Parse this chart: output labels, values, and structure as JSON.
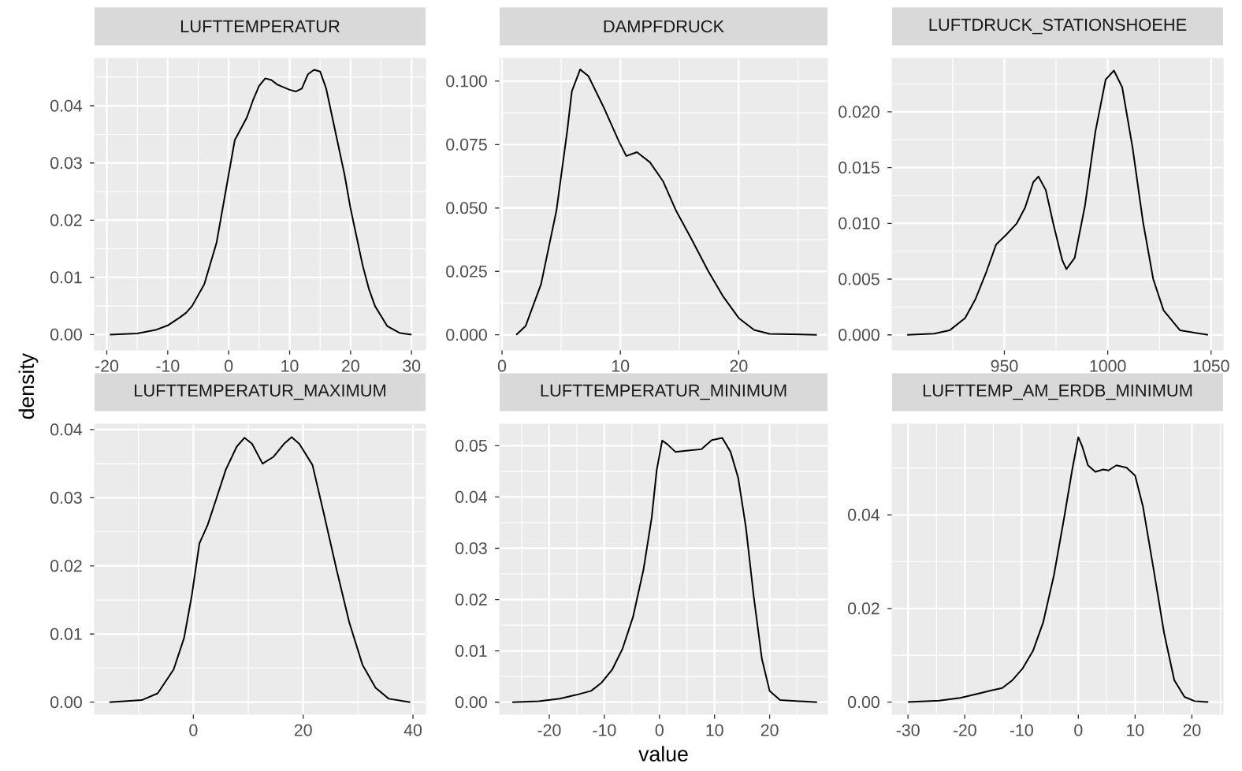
{
  "chart_data": [
    {
      "type": "line",
      "title": "LUFTTEMPERATUR",
      "color": "#000000",
      "grid": true,
      "xlim": [
        -22,
        32.3
      ],
      "ylim": [
        -0.0027,
        0.0483
      ],
      "xticks": [
        -20,
        -10,
        0,
        10,
        20,
        30
      ],
      "yticks": [
        {
          "value": 0,
          "label": "0.00"
        },
        {
          "value": 0.01,
          "label": "0.01"
        },
        {
          "value": 0.02,
          "label": "0.02"
        },
        {
          "value": 0.03,
          "label": "0.03"
        },
        {
          "value": 0.04,
          "label": "0.04"
        }
      ],
      "x": [
        -19.5,
        -15,
        -12,
        -10,
        -8,
        -7,
        -6,
        -4,
        -2,
        -1,
        0,
        1,
        2,
        3,
        4,
        5,
        6,
        7,
        8,
        10,
        11,
        12,
        13,
        14,
        15,
        16,
        17,
        18,
        19,
        20,
        21,
        22,
        23,
        24,
        26,
        28,
        30
      ],
      "values": [
        0,
        0.0002,
        0.0008,
        0.0016,
        0.003,
        0.0038,
        0.005,
        0.0088,
        0.016,
        0.022,
        0.028,
        0.034,
        0.036,
        0.038,
        0.041,
        0.0435,
        0.0448,
        0.0445,
        0.0437,
        0.0428,
        0.0425,
        0.043,
        0.0455,
        0.0463,
        0.046,
        0.043,
        0.038,
        0.033,
        0.028,
        0.022,
        0.017,
        0.012,
        0.008,
        0.005,
        0.0015,
        0.0003,
        0
      ]
    },
    {
      "type": "line",
      "title": "DAMPFDRUCK",
      "color": "#000000",
      "grid": true,
      "xlim": [
        -0.2,
        27.5
      ],
      "ylim": [
        -0.006,
        0.109
      ],
      "xticks": [
        0,
        10,
        20
      ],
      "yticks": [
        {
          "value": 0,
          "label": "0.000"
        },
        {
          "value": 0.025,
          "label": "0.025"
        },
        {
          "value": 0.05,
          "label": "0.050"
        },
        {
          "value": 0.075,
          "label": "0.075"
        },
        {
          "value": 0.1,
          "label": "0.100"
        }
      ],
      "x": [
        1.2,
        2.0,
        3.3,
        4.6,
        5.5,
        5.9,
        6.6,
        7.3,
        8.6,
        9.9,
        10.5,
        11.4,
        12.5,
        13.6,
        14.7,
        16.0,
        17.4,
        18.7,
        20,
        21.3,
        22.6,
        26.6
      ],
      "values": [
        0,
        0.0035,
        0.02,
        0.049,
        0.08,
        0.096,
        0.1046,
        0.102,
        0.0896,
        0.076,
        0.0705,
        0.072,
        0.068,
        0.0606,
        0.049,
        0.0378,
        0.0253,
        0.015,
        0.0066,
        0.0019,
        0.0004,
        0
      ]
    },
    {
      "type": "line",
      "title": "LUFTDRUCK_STATIONSHOEHE",
      "color": "#000000",
      "grid": true,
      "xlim": [
        895.7,
        1055.8
      ],
      "ylim": [
        -0.00136,
        0.0248
      ],
      "xticks": [
        950,
        1000,
        1050
      ],
      "yticks": [
        {
          "value": 0,
          "label": "0.000"
        },
        {
          "value": 0.005,
          "label": "0.005"
        },
        {
          "value": 0.01,
          "label": "0.010"
        },
        {
          "value": 0.015,
          "label": "0.015"
        },
        {
          "value": 0.02,
          "label": "0.020"
        }
      ],
      "x": [
        903,
        916,
        923.5,
        931,
        936,
        941,
        946,
        951,
        956,
        960,
        964,
        966.5,
        970,
        974,
        978,
        980,
        984,
        989,
        994,
        999,
        1003,
        1007,
        1012,
        1017,
        1022,
        1027,
        1035,
        1048.5
      ],
      "values": [
        0,
        0.0001,
        0.0004,
        0.0015,
        0.0032,
        0.0055,
        0.0081,
        0.009,
        0.01,
        0.0114,
        0.0137,
        0.0142,
        0.013,
        0.0097,
        0.0067,
        0.0059,
        0.0069,
        0.0116,
        0.0182,
        0.0229,
        0.0237,
        0.0222,
        0.0168,
        0.0102,
        0.005,
        0.0022,
        0.0004,
        0
      ]
    },
    {
      "type": "line",
      "title": "LUFTTEMPERATUR_MAXIMUM",
      "ylabel": "density",
      "color": "#000000",
      "grid": true,
      "xlim": [
        -18,
        42.3
      ],
      "ylim": [
        -0.00177,
        0.0408
      ],
      "xticks": [
        0,
        20,
        40
      ],
      "yticks": [
        {
          "value": 0,
          "label": "0.00"
        },
        {
          "value": 0.01,
          "label": "0.01"
        },
        {
          "value": 0.02,
          "label": "0.02"
        },
        {
          "value": 0.03,
          "label": "0.03"
        },
        {
          "value": 0.04,
          "label": "0.04"
        }
      ],
      "x": [
        -15.3,
        -9.4,
        -6.5,
        -3.6,
        -1.7,
        -0.3,
        1.1,
        2.6,
        4.0,
        5.9,
        7.9,
        9.3,
        10.7,
        12.6,
        14.6,
        16.5,
        17.9,
        19.3,
        21.7,
        23.7,
        26.1,
        28.4,
        30.8,
        33.2,
        35.6,
        39.5
      ],
      "values": [
        0,
        0.0003,
        0.0013,
        0.0048,
        0.0094,
        0.0156,
        0.0233,
        0.026,
        0.0294,
        0.0341,
        0.0375,
        0.0388,
        0.0379,
        0.035,
        0.036,
        0.0379,
        0.0389,
        0.0379,
        0.0348,
        0.0279,
        0.0194,
        0.0117,
        0.0055,
        0.0021,
        0.0005,
        0
      ]
    },
    {
      "type": "line",
      "title": "LUFTTEMPERATUR_MINIMUM",
      "xlabel": "value",
      "color": "#000000",
      "grid": true,
      "xlim": [
        -29,
        30.5
      ],
      "ylim": [
        -0.00235,
        0.0542
      ],
      "xticks": [
        -20,
        -10,
        0,
        10,
        20
      ],
      "yticks": [
        {
          "value": 0,
          "label": "0.00"
        },
        {
          "value": 0.01,
          "label": "0.01"
        },
        {
          "value": 0.02,
          "label": "0.02"
        },
        {
          "value": 0.03,
          "label": "0.03"
        },
        {
          "value": 0.04,
          "label": "0.04"
        },
        {
          "value": 0.05,
          "label": "0.05"
        }
      ],
      "x": [
        -26.7,
        -21.9,
        -18.1,
        -15.2,
        -12.4,
        -10.5,
        -8.6,
        -6.7,
        -4.8,
        -2.9,
        -1.4,
        -0.5,
        0.5,
        1.4,
        2.9,
        4.8,
        7.6,
        9.5,
        11.4,
        12.9,
        14.3,
        15.7,
        17.1,
        18.6,
        20,
        21.9,
        28.6
      ],
      "values": [
        0,
        0.0002,
        0.0007,
        0.0014,
        0.0022,
        0.0038,
        0.0063,
        0.0104,
        0.0166,
        0.0258,
        0.036,
        0.0452,
        0.051,
        0.0503,
        0.0488,
        0.049,
        0.0493,
        0.0511,
        0.0515,
        0.0488,
        0.0437,
        0.034,
        0.0207,
        0.0084,
        0.0022,
        0.0004,
        0
      ]
    },
    {
      "type": "line",
      "title": "LUFTTEMP_AM_ERDB_MINIMUM",
      "color": "#000000",
      "grid": true,
      "xlim": [
        -32.8,
        25.5
      ],
      "ylim": [
        -0.0026,
        0.0594
      ],
      "xticks": [
        -30,
        -20,
        -10,
        0,
        10,
        20
      ],
      "yticks": [
        {
          "value": 0,
          "label": "0.00"
        },
        {
          "value": 0.02,
          "label": "0.02"
        },
        {
          "value": 0.04,
          "label": "0.04"
        }
      ],
      "x": [
        -30,
        -24.5,
        -20.8,
        -18,
        -15.3,
        -13.4,
        -11.6,
        -9.8,
        -8,
        -6.2,
        -4.3,
        -2.5,
        -1.1,
        0,
        0.7,
        1.7,
        3.0,
        4.4,
        5.3,
        6.7,
        8.5,
        10,
        11.4,
        13.2,
        15.1,
        16.9,
        18.7,
        20.5,
        22.9
      ],
      "values": [
        0,
        0.0003,
        0.0009,
        0.0017,
        0.0025,
        0.003,
        0.0047,
        0.0072,
        0.0109,
        0.017,
        0.0271,
        0.0394,
        0.0495,
        0.0566,
        0.0546,
        0.0506,
        0.0492,
        0.0497,
        0.0495,
        0.0506,
        0.0501,
        0.0484,
        0.0417,
        0.0288,
        0.0148,
        0.0047,
        0.0011,
        0.0002,
        0
      ]
    }
  ]
}
